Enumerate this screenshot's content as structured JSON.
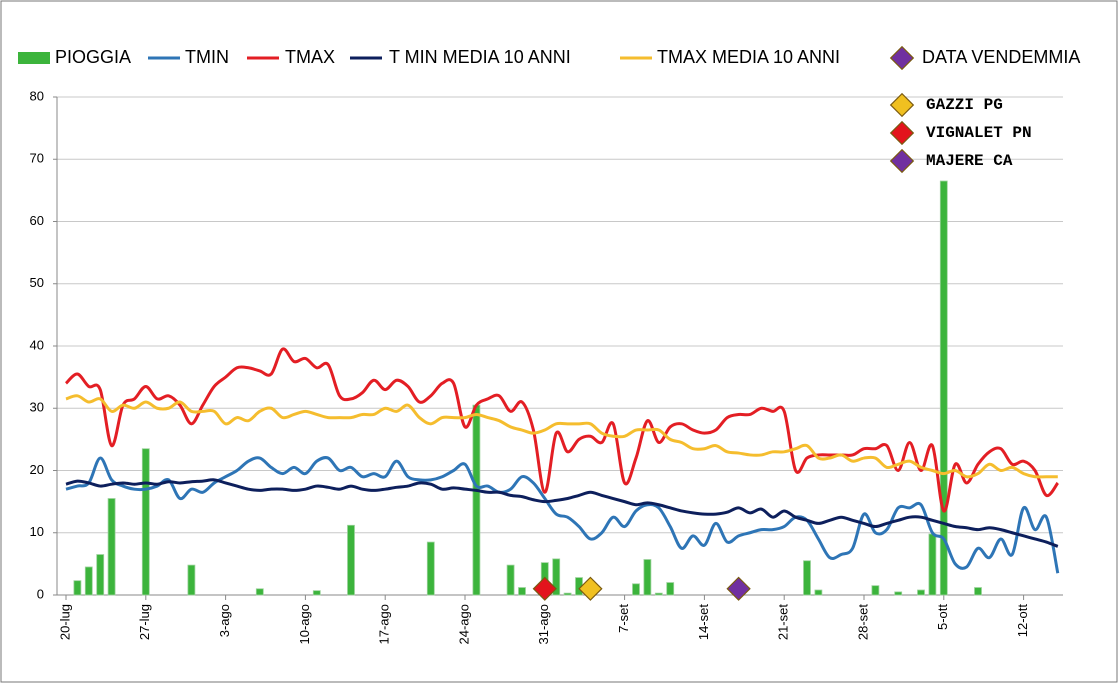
{
  "chart_data": {
    "type": "line",
    "categories": [
      "20-lug",
      null,
      null,
      null,
      null,
      null,
      null,
      "27-lug",
      null,
      null,
      null,
      null,
      null,
      null,
      "3-ago",
      null,
      null,
      null,
      null,
      null,
      null,
      "10-ago",
      null,
      null,
      null,
      null,
      null,
      null,
      "17-ago",
      null,
      null,
      null,
      null,
      null,
      null,
      "24-ago",
      null,
      null,
      null,
      null,
      null,
      null,
      "31-ago",
      null,
      null,
      null,
      null,
      null,
      null,
      "7-set",
      null,
      null,
      null,
      null,
      null,
      null,
      "14-set",
      null,
      null,
      null,
      null,
      null,
      null,
      "21-set",
      null,
      null,
      null,
      null,
      null,
      null,
      "28-set",
      null,
      null,
      null,
      null,
      null,
      null,
      "5-ott",
      null,
      null,
      null,
      null,
      null,
      null,
      "12-ott",
      null,
      null,
      null
    ],
    "ylim": [
      0,
      80
    ],
    "yticks": [
      0,
      10,
      20,
      30,
      40,
      50,
      60,
      70,
      80
    ],
    "grid": true,
    "series": [
      {
        "name": "PIOGGIA",
        "type": "bar",
        "color": "#3cb43c",
        "values": [
          0,
          2.3,
          4.5,
          6.5,
          15.5,
          0,
          0,
          23.5,
          0,
          0,
          0,
          4.8,
          0,
          0,
          0,
          0,
          0,
          1,
          0,
          0,
          0,
          0,
          0.7,
          0,
          0,
          11.2,
          0,
          0,
          0,
          0,
          0,
          0,
          8.5,
          0,
          0,
          0,
          30.5,
          0,
          0,
          4.8,
          1.2,
          0,
          5.2,
          5.8,
          0.3,
          2.8,
          0,
          0,
          0,
          0,
          1.8,
          5.7,
          0.3,
          2,
          0,
          0,
          0,
          0,
          0,
          0,
          0,
          0,
          0,
          0,
          0,
          5.5,
          0.8,
          0,
          0,
          0,
          0,
          1.5,
          0,
          0.5,
          0,
          0.8,
          9.8,
          66.5,
          0,
          0,
          1.2,
          0,
          0,
          0,
          0,
          0,
          0,
          0
        ]
      },
      {
        "name": "TMIN",
        "type": "line",
        "color": "#2e75b6",
        "values": [
          17,
          17.5,
          18,
          22,
          18.5,
          17.5,
          17,
          17,
          17.5,
          18.5,
          15.5,
          17,
          16.5,
          18,
          19,
          20,
          21.5,
          22,
          20.5,
          19.5,
          20.5,
          19.5,
          21.5,
          22,
          20,
          20.5,
          19,
          19.5,
          19,
          21.5,
          19,
          18.5,
          18.5,
          19,
          20,
          21,
          17.5,
          17.5,
          16.5,
          17,
          19,
          18,
          15.5,
          13,
          12.5,
          11,
          9,
          10,
          12.5,
          11,
          13.5,
          14.5,
          14,
          11,
          7.5,
          9.5,
          8,
          11.5,
          8.5,
          9.5,
          10,
          10.5,
          10.5,
          11,
          12.5,
          12,
          9,
          6,
          6.5,
          7.5,
          13,
          10,
          10.5,
          14,
          14,
          14.5,
          10,
          9,
          5,
          4.5,
          7.5,
          6,
          9,
          6.5,
          14,
          10.5,
          12.5,
          3.5
        ]
      },
      {
        "name": "TMAX",
        "type": "line",
        "color": "#e31e24",
        "values": [
          34,
          35.5,
          33.5,
          33,
          24,
          30.5,
          31.5,
          33.5,
          31.5,
          32,
          30.5,
          27.5,
          30.5,
          33.5,
          35,
          36.5,
          36.5,
          36,
          35.5,
          39.5,
          37.5,
          38,
          36.5,
          37,
          32,
          31.5,
          32.5,
          34.5,
          33,
          34.5,
          33.5,
          31,
          32,
          34,
          34,
          27,
          30.5,
          31.5,
          32,
          29.5,
          31,
          26.5,
          16.5,
          26,
          23,
          25,
          25.5,
          24.5,
          27.5,
          18,
          22,
          28,
          24.5,
          27,
          27.5,
          26.5,
          26,
          26.5,
          28.5,
          29,
          29,
          30,
          29.5,
          29.5,
          20,
          22,
          22.5,
          22.5,
          22.5,
          22.5,
          23.5,
          23.5,
          24,
          20,
          24.5,
          20,
          24,
          13.5,
          21,
          18,
          21,
          23,
          23.5,
          21,
          21.5,
          20,
          16,
          18
        ]
      },
      {
        "name": "T MIN MEDIA 10 ANNI",
        "type": "line",
        "color": "#0d1f5c",
        "values": [
          17.8,
          18.3,
          18,
          17.5,
          17.8,
          18,
          17.8,
          18,
          17.8,
          18.2,
          18,
          18.2,
          18.3,
          18.5,
          18,
          17.5,
          17,
          16.8,
          17,
          17,
          16.8,
          17,
          17.5,
          17.3,
          17,
          17.5,
          17,
          16.8,
          17,
          17.3,
          17.5,
          18,
          17.8,
          17,
          17.2,
          17,
          16.8,
          16.5,
          16.5,
          16,
          15.8,
          15.3,
          15,
          15.2,
          15.5,
          16,
          16.5,
          16,
          15.5,
          15,
          14.5,
          14.8,
          14.5,
          14,
          13.5,
          13.2,
          13,
          13,
          13.3,
          14,
          13.2,
          13.8,
          12.5,
          13.5,
          12.5,
          12,
          11.5,
          12,
          12.5,
          12,
          11.5,
          11,
          11.5,
          12,
          12.5,
          12.5,
          12,
          11.5,
          11,
          10.8,
          10.5,
          10.8,
          10.5,
          10,
          9.5,
          9,
          8.5,
          7.8
        ]
      },
      {
        "name": "TMAX MEDIA 10 ANNI",
        "type": "line",
        "color": "#f5bd2e",
        "values": [
          31.5,
          32,
          31,
          31.5,
          29.5,
          30.5,
          30,
          31,
          30,
          30,
          31,
          29.5,
          29.5,
          29.5,
          27.5,
          28.5,
          28,
          29.5,
          30,
          28.5,
          29,
          29.5,
          29,
          28.5,
          28.5,
          28.5,
          29,
          29,
          30,
          29.5,
          30.5,
          28.5,
          27.5,
          28.5,
          28.5,
          28.5,
          29,
          28.5,
          28,
          27,
          26.5,
          26,
          26.5,
          27.5,
          27.5,
          27.5,
          27.5,
          26,
          25.5,
          25.5,
          26.5,
          26.5,
          26.5,
          25,
          24.5,
          23.5,
          23.5,
          24,
          23,
          22.8,
          22.5,
          22.5,
          23,
          23,
          23.5,
          24,
          22,
          22,
          22.5,
          21.5,
          22,
          22,
          20.5,
          21,
          21.5,
          20.5,
          20,
          19.5,
          20,
          19,
          19.5,
          21,
          20,
          20.5,
          19.5,
          19,
          19,
          19
        ]
      }
    ],
    "harvest": {
      "name": "DATA VENDEMMIA",
      "color": "#7030a0",
      "points": [
        {
          "name": "GAZZI PG",
          "color": "#f0c020",
          "index": 46,
          "value": 1
        },
        {
          "name": "VIGNALET PN",
          "color": "#e3141c",
          "index": 42,
          "value": 1
        },
        {
          "name": "MAJERE CA",
          "color": "#7030a0",
          "index": 59,
          "value": 1
        }
      ]
    }
  }
}
